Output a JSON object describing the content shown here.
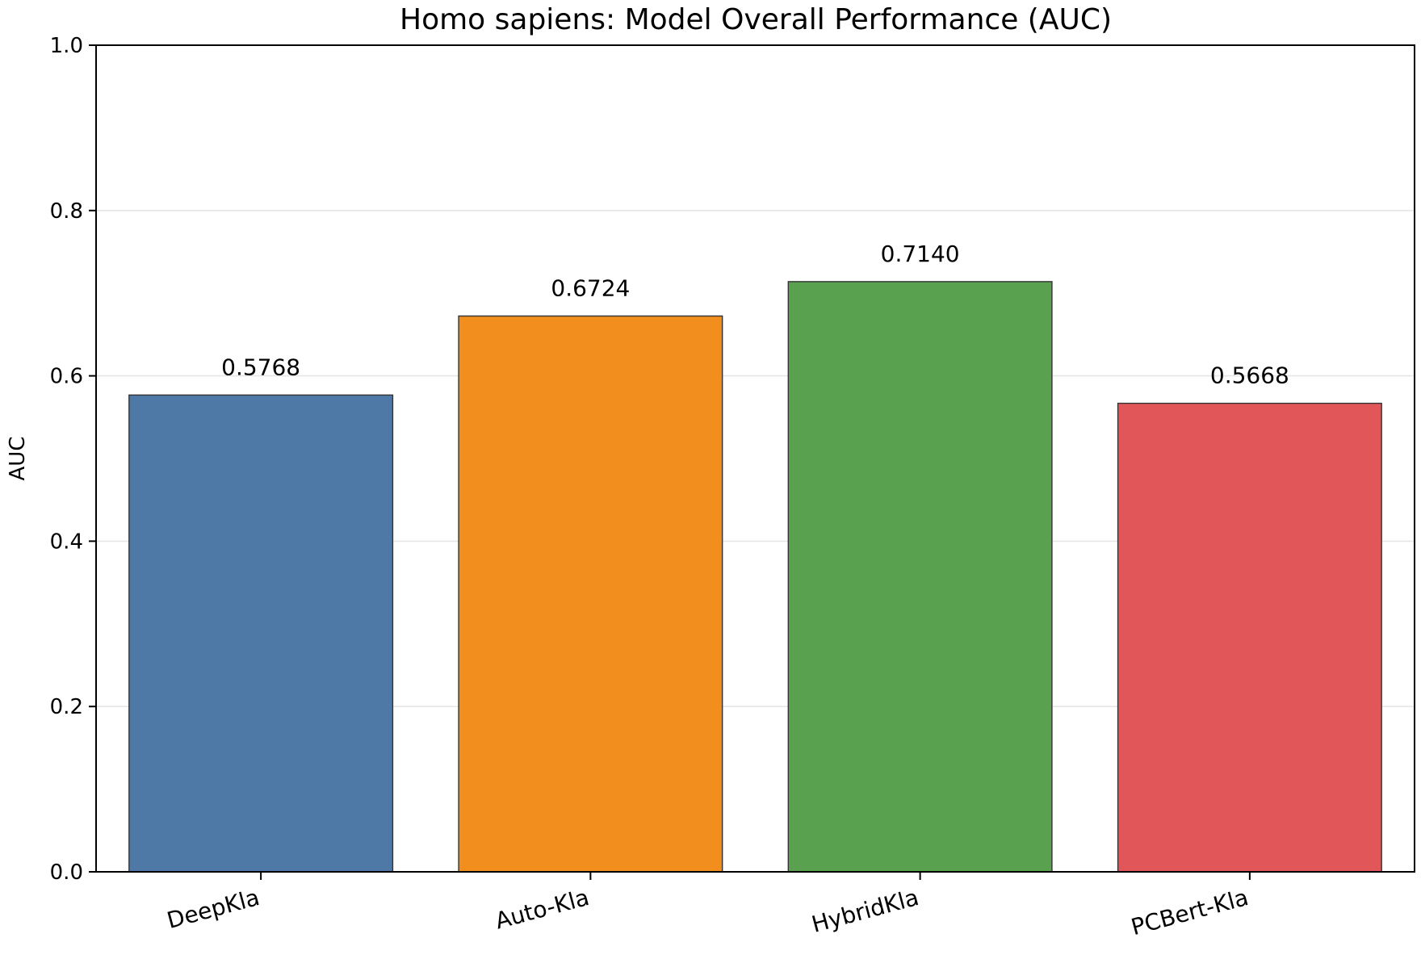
{
  "chart_data": {
    "type": "bar",
    "title": "Homo sapiens: Model Overall Performance (AUC)",
    "xlabel": "",
    "ylabel": "AUC",
    "categories": [
      "DeepKla",
      "Auto-Kla",
      "HybridKla",
      "PCBert-Kla"
    ],
    "values": [
      0.5768,
      0.6724,
      0.714,
      0.5668
    ],
    "value_labels": [
      "0.5768",
      "0.6724",
      "0.7140",
      "0.5668"
    ],
    "colors": [
      "#4e79a7",
      "#f28e1e",
      "#59a14f",
      "#e15759"
    ],
    "ylim": [
      0,
      1.0
    ],
    "yticks": [
      0.0,
      0.2,
      0.4,
      0.6,
      0.8,
      1.0
    ],
    "ytick_labels": [
      "0.0",
      "0.2",
      "0.4",
      "0.6",
      "0.8",
      "1.0"
    ],
    "grid": "horizontal",
    "legend": "none"
  }
}
